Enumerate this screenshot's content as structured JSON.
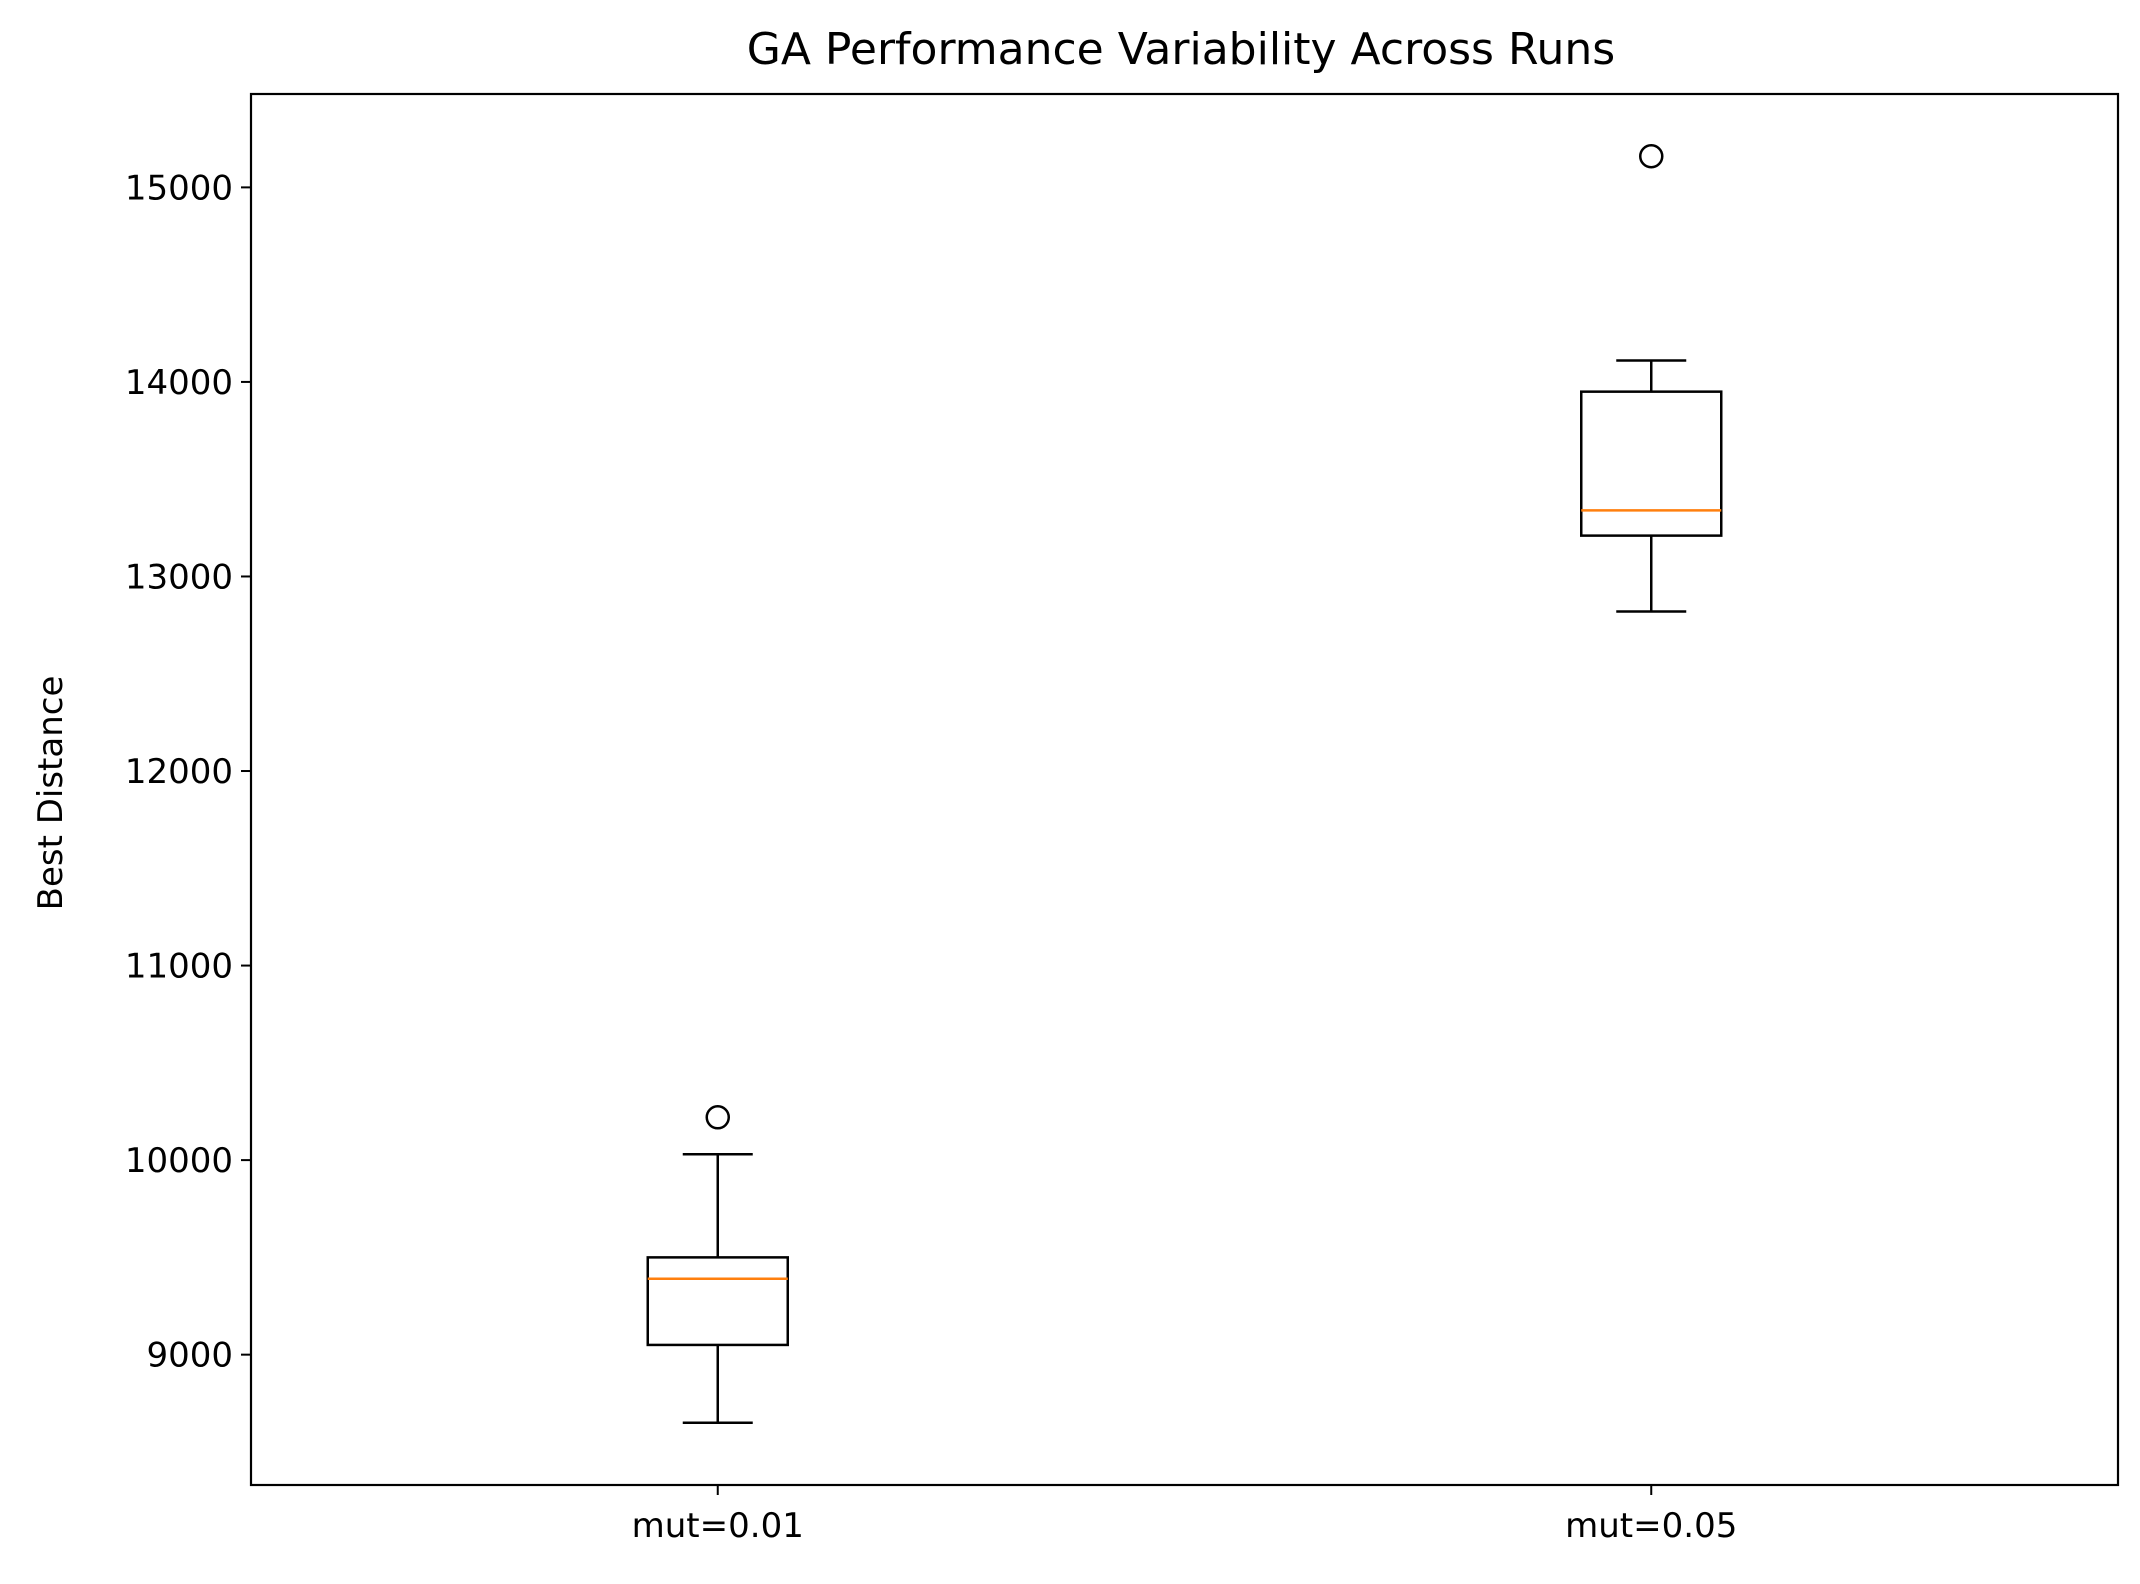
{
  "chart_data": {
    "type": "box",
    "title": "GA Performance Variability Across Runs",
    "xlabel": "",
    "ylabel": "Best Distance",
    "categories": [
      "mut=0.01",
      "mut=0.05"
    ],
    "boxes": [
      {
        "category": "mut=0.01",
        "whisker_low": 8650,
        "q1": 9050,
        "median": 9390,
        "q3": 9500,
        "whisker_high": 10030,
        "outliers": [
          10220
        ]
      },
      {
        "category": "mut=0.05",
        "whisker_low": 12820,
        "q1": 13210,
        "median": 13340,
        "q3": 13950,
        "whisker_high": 14110,
        "outliers": [
          15160
        ]
      }
    ],
    "ylim": [
      8330,
      15480
    ],
    "yticks": [
      9000,
      10000,
      11000,
      12000,
      13000,
      14000,
      15000
    ],
    "ytick_labels": [
      "9000",
      "10000",
      "11000",
      "12000",
      "13000",
      "14000",
      "15000"
    ],
    "grid": false,
    "colors": {
      "box": "#000000",
      "median": "#ff7f0e",
      "axes": "#000000"
    }
  }
}
